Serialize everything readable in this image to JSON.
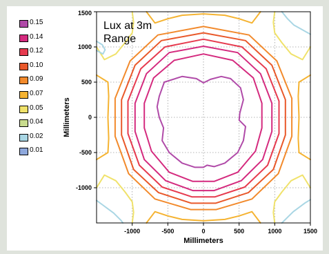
{
  "chart_data": {
    "type": "contour",
    "title": "Lux at 3m Range",
    "title_lines": [
      "Lux at 3m",
      "Range"
    ],
    "xlabel": "Millimeters",
    "ylabel": "Millimeters",
    "xlim": [
      -1500,
      1500
    ],
    "ylim": [
      -1500,
      1500
    ],
    "xticks": [
      -1000,
      -500,
      0,
      500,
      1000,
      1500
    ],
    "yticks": [
      1500,
      1000,
      500,
      0,
      -500,
      -1000
    ],
    "xtick_labels": [
      "-1000",
      "-500",
      "0",
      "500",
      "1000",
      "1500"
    ],
    "ytick_labels": [
      "1500",
      "1000",
      "500",
      "0",
      "-500",
      "-1000"
    ],
    "grid": true,
    "grid_style": "dotted",
    "legend_position": "left",
    "legend": [
      {
        "label": "0.15",
        "color": "#b04aa8"
      },
      {
        "label": "0.14",
        "color": "#d42a7e"
      },
      {
        "label": "0.12",
        "color": "#e63a4e"
      },
      {
        "label": "0.10",
        "color": "#e9582a"
      },
      {
        "label": "0.09",
        "color": "#f28a2c"
      },
      {
        "label": "0.07",
        "color": "#f5b331"
      },
      {
        "label": "0.05",
        "color": "#f0e26b"
      },
      {
        "label": "0.04",
        "color": "#c9dc8e"
      },
      {
        "label": "0.02",
        "color": "#a9d6e4"
      },
      {
        "label": "0.01",
        "color": "#8ea8dc"
      }
    ],
    "contours": [
      {
        "level": "0.15",
        "points": [
          [
            -550,
            500
          ],
          [
            -300,
            580
          ],
          [
            -100,
            550
          ],
          [
            0,
            490
          ],
          [
            100,
            540
          ],
          [
            250,
            580
          ],
          [
            380,
            550
          ],
          [
            520,
            420
          ],
          [
            560,
            250
          ],
          [
            510,
            60
          ],
          [
            500,
            -40
          ],
          [
            590,
            -130
          ],
          [
            560,
            -330
          ],
          [
            480,
            -500
          ],
          [
            300,
            -650
          ],
          [
            150,
            -700
          ],
          [
            50,
            -680
          ],
          [
            0,
            -710
          ],
          [
            -120,
            -710
          ],
          [
            -300,
            -650
          ],
          [
            -480,
            -500
          ],
          [
            -580,
            -330
          ],
          [
            -560,
            -150
          ],
          [
            -620,
            0
          ],
          [
            -650,
            150
          ],
          [
            -620,
            300
          ],
          [
            -550,
            500
          ]
        ]
      },
      {
        "level": "0.14",
        "points": [
          [
            0,
            900
          ],
          [
            410,
            810
          ],
          [
            700,
            560
          ],
          [
            820,
            200
          ],
          [
            820,
            -150
          ],
          [
            730,
            -480
          ],
          [
            480,
            -780
          ],
          [
            150,
            -910
          ],
          [
            -150,
            -910
          ],
          [
            -480,
            -780
          ],
          [
            -730,
            -480
          ],
          [
            -830,
            -150
          ],
          [
            -830,
            200
          ],
          [
            -700,
            560
          ],
          [
            -410,
            810
          ],
          [
            0,
            900
          ]
        ]
      },
      {
        "level": "0.14",
        "points": [
          [
            0,
            1010
          ],
          [
            480,
            920
          ],
          [
            800,
            620
          ],
          [
            960,
            200
          ],
          [
            960,
            -200
          ],
          [
            830,
            -600
          ],
          [
            530,
            -900
          ],
          [
            150,
            -1040
          ],
          [
            -150,
            -1040
          ],
          [
            -530,
            -900
          ],
          [
            -830,
            -600
          ],
          [
            -960,
            -200
          ],
          [
            -960,
            200
          ],
          [
            -800,
            620
          ],
          [
            -480,
            920
          ],
          [
            0,
            1010
          ]
        ]
      },
      {
        "level": "0.12",
        "points": [
          [
            0,
            1110
          ],
          [
            540,
            1000
          ],
          [
            880,
            690
          ],
          [
            1060,
            230
          ],
          [
            1060,
            -230
          ],
          [
            900,
            -680
          ],
          [
            580,
            -990
          ],
          [
            160,
            -1130
          ],
          [
            -160,
            -1130
          ],
          [
            -580,
            -990
          ],
          [
            -900,
            -680
          ],
          [
            -1060,
            -230
          ],
          [
            -1060,
            230
          ],
          [
            -880,
            690
          ],
          [
            -540,
            1000
          ],
          [
            0,
            1110
          ]
        ]
      },
      {
        "level": "0.10",
        "points": [
          [
            0,
            1200
          ],
          [
            590,
            1090
          ],
          [
            960,
            740
          ],
          [
            1150,
            250
          ],
          [
            1150,
            -250
          ],
          [
            980,
            -740
          ],
          [
            630,
            -1070
          ],
          [
            170,
            -1220
          ],
          [
            -170,
            -1220
          ],
          [
            -630,
            -1070
          ],
          [
            -980,
            -740
          ],
          [
            -1150,
            -250
          ],
          [
            -1150,
            250
          ],
          [
            -960,
            740
          ],
          [
            -590,
            1090
          ],
          [
            0,
            1200
          ]
        ]
      },
      {
        "level": "0.09",
        "points": [
          [
            0,
            1290
          ],
          [
            640,
            1170
          ],
          [
            1030,
            800
          ],
          [
            1240,
            270
          ],
          [
            1240,
            -270
          ],
          [
            1050,
            -800
          ],
          [
            680,
            -1160
          ],
          [
            180,
            -1310
          ],
          [
            -180,
            -1310
          ],
          [
            -680,
            -1160
          ],
          [
            -1050,
            -800
          ],
          [
            -1240,
            -270
          ],
          [
            -1240,
            270
          ],
          [
            -1030,
            800
          ],
          [
            -640,
            1170
          ],
          [
            0,
            1290
          ]
        ]
      },
      {
        "level": "0.07",
        "points": [
          [
            -800,
            1500
          ],
          [
            -680,
            1340
          ],
          [
            -500,
            1400
          ],
          [
            -300,
            1450
          ],
          [
            0,
            1470
          ],
          [
            300,
            1450
          ],
          [
            500,
            1400
          ],
          [
            680,
            1340
          ],
          [
            800,
            1500
          ]
        ]
      },
      {
        "level": "0.07",
        "points": [
          [
            -1500,
            -600
          ],
          [
            -1340,
            -500
          ],
          [
            -1330,
            -300
          ],
          [
            -1340,
            0
          ],
          [
            -1330,
            300
          ],
          [
            -1340,
            500
          ],
          [
            -1500,
            600
          ]
        ]
      },
      {
        "level": "0.07",
        "points": [
          [
            1500,
            -600
          ],
          [
            1340,
            -500
          ],
          [
            1330,
            -300
          ],
          [
            1340,
            0
          ],
          [
            1330,
            300
          ],
          [
            1340,
            500
          ],
          [
            1500,
            600
          ]
        ]
      },
      {
        "level": "0.07",
        "points": [
          [
            -800,
            -1500
          ],
          [
            -680,
            -1340
          ],
          [
            -500,
            -1400
          ],
          [
            -300,
            -1450
          ],
          [
            0,
            -1470
          ],
          [
            300,
            -1450
          ],
          [
            500,
            -1400
          ],
          [
            680,
            -1340
          ],
          [
            800,
            -1500
          ]
        ]
      },
      {
        "level": "0.05",
        "points": [
          [
            -1500,
            1000
          ],
          [
            -1390,
            820
          ],
          [
            -1230,
            900
          ],
          [
            -1100,
            1060
          ],
          [
            -1000,
            1200
          ],
          [
            -980,
            1350
          ],
          [
            -1000,
            1500
          ]
        ]
      },
      {
        "level": "0.05",
        "points": [
          [
            1500,
            1000
          ],
          [
            1390,
            820
          ],
          [
            1230,
            900
          ],
          [
            1100,
            1060
          ],
          [
            1000,
            1200
          ],
          [
            980,
            1350
          ],
          [
            1000,
            1500
          ]
        ]
      },
      {
        "level": "0.05",
        "points": [
          [
            -1500,
            -1000
          ],
          [
            -1390,
            -820
          ],
          [
            -1230,
            -900
          ],
          [
            -1100,
            -1060
          ],
          [
            -1000,
            -1200
          ],
          [
            -980,
            -1350
          ],
          [
            -1000,
            -1500
          ]
        ]
      },
      {
        "level": "0.05",
        "points": [
          [
            1500,
            -1000
          ],
          [
            1390,
            -820
          ],
          [
            1230,
            -900
          ],
          [
            1100,
            -1060
          ],
          [
            1000,
            -1200
          ],
          [
            980,
            -1350
          ],
          [
            1000,
            -1500
          ]
        ]
      },
      {
        "level": "0.02",
        "points": [
          [
            -1500,
            950
          ],
          [
            -1410,
            900
          ],
          [
            -1380,
            960
          ],
          [
            -1420,
            1030
          ],
          [
            -1500,
            1080
          ]
        ]
      },
      {
        "level": "0.02",
        "points": [
          [
            1100,
            1500
          ],
          [
            1180,
            1400
          ],
          [
            1270,
            1310
          ],
          [
            1360,
            1260
          ],
          [
            1430,
            1220
          ],
          [
            1500,
            1180
          ]
        ]
      },
      {
        "level": "0.02",
        "points": [
          [
            -1500,
            -1180
          ],
          [
            -1420,
            -1240
          ],
          [
            -1340,
            -1300
          ],
          [
            -1260,
            -1360
          ],
          [
            -1160,
            -1460
          ],
          [
            -1130,
            -1500
          ]
        ]
      },
      {
        "level": "0.02",
        "points": [
          [
            1100,
            -1500
          ],
          [
            1180,
            -1420
          ],
          [
            1260,
            -1340
          ],
          [
            1340,
            -1280
          ],
          [
            1420,
            -1220
          ],
          [
            1500,
            -1170
          ]
        ]
      }
    ]
  }
}
